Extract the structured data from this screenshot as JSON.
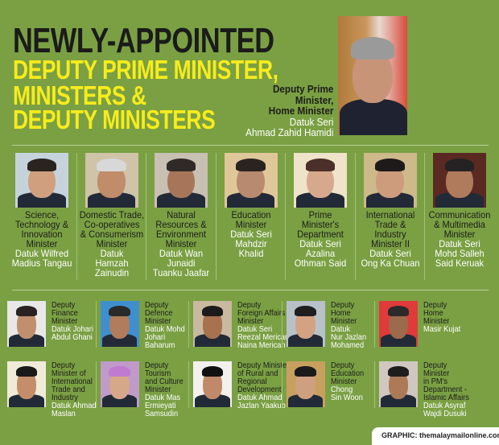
{
  "title": {
    "line1": "NEWLY-APPOINTED",
    "line2": "DEPUTY PRIME MINISTER,",
    "line3": "MINISTERS &",
    "line4": "DEPUTY MINISTERS"
  },
  "colors": {
    "background": "#7aa043",
    "headline": "#1b1b1b",
    "accent_yellow": "#f7ec1c",
    "name_text": "#ffffff"
  },
  "deputy_prime_minister": {
    "role": [
      "Deputy Prime",
      "Minister,",
      "Home Minister"
    ],
    "name": [
      "Datuk Seri",
      "Ahmad Zahid Hamidi"
    ]
  },
  "ministers": [
    {
      "role": [
        "Science,",
        "Technology &",
        "Innovation",
        "Minister"
      ],
      "name": [
        "Datuk Wilfred",
        "Madius Tangau"
      ]
    },
    {
      "role": [
        "Domestic Trade,",
        "Co-operatives",
        "& Consumerism",
        "Minister"
      ],
      "name": [
        "Datuk",
        "Hamzah",
        "Zainudin"
      ]
    },
    {
      "role": [
        "Natural",
        "Resources &",
        "Environment",
        "Minister"
      ],
      "name": [
        "Datuk Wan",
        "Junaidi",
        "Tuanku Jaafar"
      ]
    },
    {
      "role": [
        "Education",
        "Minister"
      ],
      "name": [
        "Datuk Seri",
        "Mahdzir",
        "Khalid"
      ]
    },
    {
      "role": [
        "Prime",
        "Minister's",
        "Department"
      ],
      "name": [
        "Datuk Seri",
        "Azalina",
        "Othman Said"
      ]
    },
    {
      "role": [
        "International",
        "Trade &",
        "Industry",
        "Minister II"
      ],
      "name": [
        "Datuk Seri",
        "Ong Ka Chuan"
      ]
    },
    {
      "role": [
        "Communication",
        "& Multimedia",
        "Minister"
      ],
      "name": [
        "Datuk Seri",
        "Mohd Salleh",
        "Said Keruak"
      ]
    }
  ],
  "deputy_ministers": [
    {
      "role": [
        "Deputy",
        "Finance",
        "Minister"
      ],
      "name": [
        "Datuk Johari",
        "Abdul Ghani"
      ]
    },
    {
      "role": [
        "Deputy",
        "Defence",
        "Minister"
      ],
      "name": [
        "Datuk Mohd",
        "Johari",
        "Baharum"
      ]
    },
    {
      "role": [
        "Deputy",
        "Foreign Affairs",
        "Minister"
      ],
      "name": [
        "Datuk Seri",
        "Reezal Merican",
        "Naina Merican"
      ]
    },
    {
      "role": [
        "Deputy",
        "Home",
        "Minister"
      ],
      "name": [
        "Datuk",
        "Nur Jazlan",
        "Mohamed"
      ]
    },
    {
      "role": [
        "Deputy",
        "Home",
        "Minister"
      ],
      "name": [
        "Masir Kujat"
      ]
    },
    {
      "role": [
        "Deputy",
        "Minister of",
        "International",
        "Trade and",
        "Industry"
      ],
      "name": [
        "Datuk Ahmad",
        "Maslan"
      ]
    },
    {
      "role": [
        "Deputy",
        "Tourism",
        "and Culture",
        "Minister"
      ],
      "name": [
        "Datuk Mas",
        "Ermieyati",
        "Samsudin"
      ]
    },
    {
      "role": [
        "Deputy Minister",
        "of Rural and",
        "Regional",
        "Development"
      ],
      "name": [
        "Datuk Ahmad",
        "Jazlan Yaakub"
      ]
    },
    {
      "role": [
        "Deputy",
        "Education",
        "Minister"
      ],
      "name": [
        "Chong",
        "Sin Woon"
      ]
    },
    {
      "role": [
        "Deputy",
        "Minister",
        "in PM's",
        "Department -",
        "Islamic Affairs"
      ],
      "name": [
        "Datuk Asyraf",
        "Wajdi Dusuki"
      ]
    }
  ],
  "footer": {
    "credit": "GRAPHIC: themalaymailonline.com"
  }
}
